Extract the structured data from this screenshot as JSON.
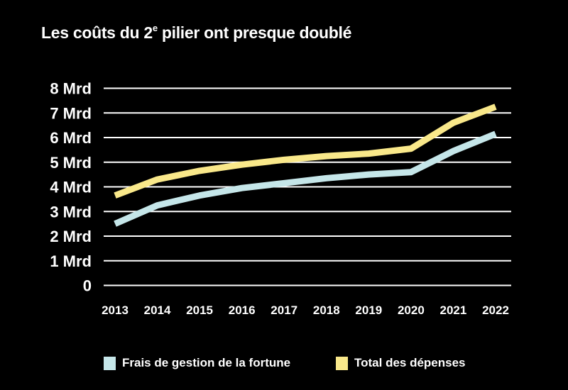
{
  "title_main": "Les coûts du 2",
  "title_sup": "e",
  "title_rest": " pilier ont presque doublé",
  "chart_data": {
    "type": "line",
    "x": [
      "2013",
      "2014",
      "2015",
      "2016",
      "2017",
      "2018",
      "2019",
      "2020",
      "2021",
      "2022"
    ],
    "y_ticks": [
      {
        "value": 0,
        "label": "0"
      },
      {
        "value": 1,
        "label": "1 Mrd"
      },
      {
        "value": 2,
        "label": "2 Mrd"
      },
      {
        "value": 3,
        "label": "3 Mrd"
      },
      {
        "value": 4,
        "label": "4 Mrd"
      },
      {
        "value": 5,
        "label": "5 Mrd"
      },
      {
        "value": 6,
        "label": "6 Mrd"
      },
      {
        "value": 7,
        "label": "7 Mrd"
      },
      {
        "value": 8,
        "label": "8 Mrd"
      }
    ],
    "ylim": [
      0,
      8
    ],
    "grid": true,
    "legend_position": "bottom",
    "series": [
      {
        "name": "Frais de gestion de la fortune",
        "color": "#c5e6e9",
        "values": [
          2.5,
          3.25,
          3.65,
          3.95,
          4.15,
          4.35,
          4.5,
          4.6,
          5.45,
          6.15
        ]
      },
      {
        "name": "Total des dépenses",
        "color": "#f9e88a",
        "values": [
          3.65,
          4.3,
          4.65,
          4.9,
          5.1,
          5.25,
          5.35,
          5.55,
          6.6,
          7.25
        ]
      }
    ]
  }
}
